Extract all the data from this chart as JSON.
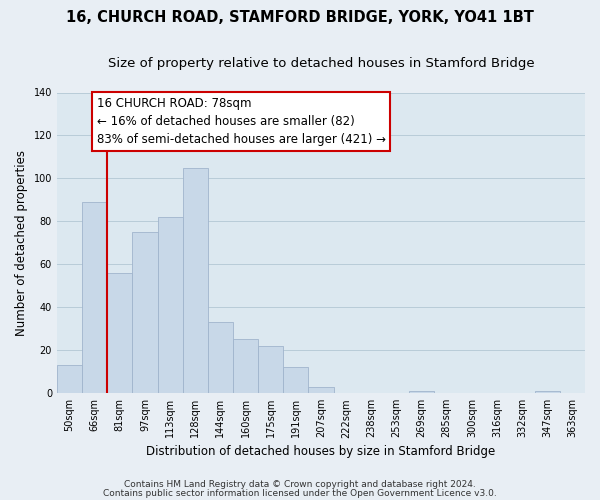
{
  "title": "16, CHURCH ROAD, STAMFORD BRIDGE, YORK, YO41 1BT",
  "subtitle": "Size of property relative to detached houses in Stamford Bridge",
  "xlabel": "Distribution of detached houses by size in Stamford Bridge",
  "ylabel": "Number of detached properties",
  "footnote1": "Contains HM Land Registry data © Crown copyright and database right 2024.",
  "footnote2": "Contains public sector information licensed under the Open Government Licence v3.0.",
  "bar_labels": [
    "50sqm",
    "66sqm",
    "81sqm",
    "97sqm",
    "113sqm",
    "128sqm",
    "144sqm",
    "160sqm",
    "175sqm",
    "191sqm",
    "207sqm",
    "222sqm",
    "238sqm",
    "253sqm",
    "269sqm",
    "285sqm",
    "300sqm",
    "316sqm",
    "332sqm",
    "347sqm",
    "363sqm"
  ],
  "bar_values": [
    13,
    89,
    56,
    75,
    82,
    105,
    33,
    25,
    22,
    12,
    3,
    0,
    0,
    0,
    1,
    0,
    0,
    0,
    0,
    1,
    0
  ],
  "bar_color": "#c8d8e8",
  "bar_edge_color": "#a0b4cc",
  "ylim": [
    0,
    140
  ],
  "yticks": [
    0,
    20,
    40,
    60,
    80,
    100,
    120,
    140
  ],
  "property_line_color": "#cc0000",
  "annotation_title": "16 CHURCH ROAD: 78sqm",
  "annotation_line1": "← 16% of detached houses are smaller (82)",
  "annotation_line2": "83% of semi-detached houses are larger (421) →",
  "annotation_box_facecolor": "#ffffff",
  "annotation_box_edgecolor": "#cc0000",
  "background_color": "#e8eef4",
  "plot_bg_color": "#dce8f0",
  "grid_color": "#b8ccd8",
  "title_fontsize": 10.5,
  "subtitle_fontsize": 9.5,
  "axis_label_fontsize": 8.5,
  "tick_fontsize": 7,
  "annotation_fontsize": 8.5,
  "footnote_fontsize": 6.5
}
